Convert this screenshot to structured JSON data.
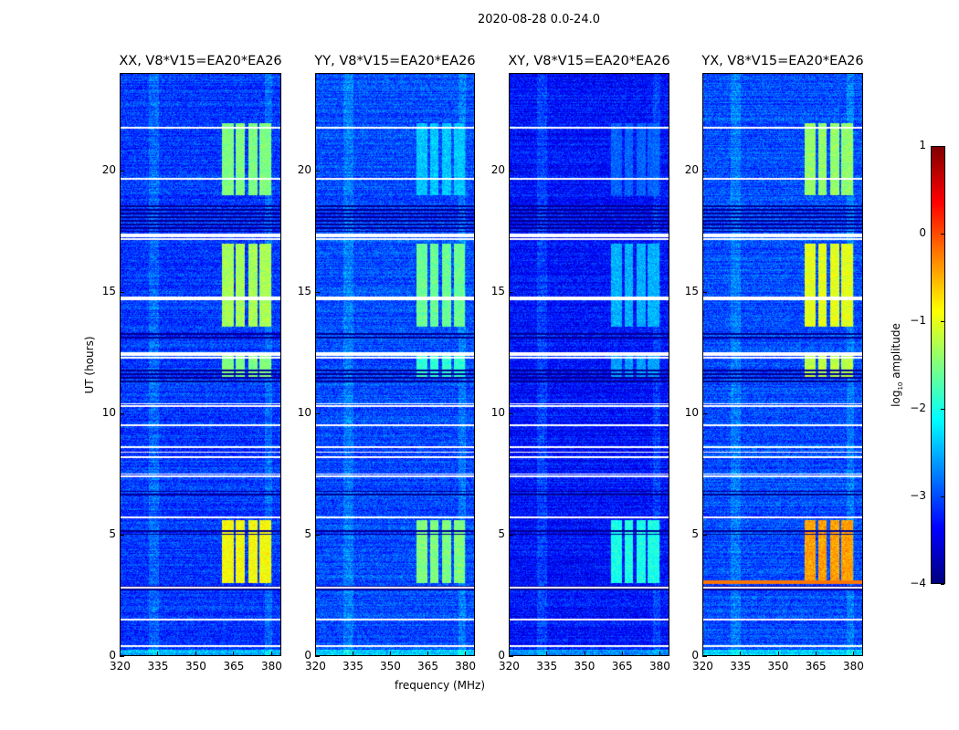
{
  "chart_data": {
    "type": "heatmap",
    "title": "2020-08-28 0.0-24.0",
    "xlabel": "frequency (MHz)",
    "ylabel": "UT (hours)",
    "xlim": [
      320,
      384
    ],
    "ylim": [
      0,
      24
    ],
    "xticks": [
      "320",
      "335",
      "350",
      "365",
      "380"
    ],
    "xtick_values": [
      320,
      335,
      350,
      365,
      380
    ],
    "yticks": [
      "0",
      "5",
      "10",
      "15",
      "20"
    ],
    "ytick_values": [
      0,
      5,
      10,
      15,
      20
    ],
    "colorbar": {
      "label": "log10 amplitude",
      "label_main": "log",
      "label_sub": "10",
      "label_rest": " amplitude",
      "colormap": "jet",
      "range": [
        -4,
        1
      ],
      "ticks": [
        "1",
        "0",
        "−1",
        "−2",
        "−3",
        "−4"
      ],
      "tick_values": [
        1,
        0,
        -1,
        -2,
        -3,
        -4
      ]
    },
    "panels": [
      {
        "title": "XX, V8*V15=EA20*EA26",
        "base": -3.1,
        "rfi": [
          [
            3.0,
            5.6,
            -0.9
          ],
          [
            13.6,
            17.0,
            -1.3
          ],
          [
            19.0,
            22.0,
            -1.5
          ],
          [
            11.5,
            12.5,
            -1.5
          ]
        ]
      },
      {
        "title": "YY, V8*V15=EA20*EA26",
        "base": -3.0,
        "rfi": [
          [
            3.0,
            5.6,
            -1.5
          ],
          [
            13.6,
            17.0,
            -1.6
          ],
          [
            19.0,
            22.0,
            -2.4
          ],
          [
            11.5,
            12.5,
            -1.9
          ]
        ]
      },
      {
        "title": "XY, V8*V15=EA20*EA26",
        "base": -3.3,
        "rfi": [
          [
            3.0,
            5.6,
            -2.0
          ],
          [
            13.6,
            17.0,
            -2.5
          ],
          [
            19.0,
            22.0,
            -2.9
          ],
          [
            11.5,
            12.5,
            -2.6
          ]
        ]
      },
      {
        "title": "YX, V8*V15=EA20*EA26",
        "base": -3.0,
        "rfi": [
          [
            3.0,
            5.6,
            -0.4
          ],
          [
            13.6,
            17.0,
            -1.0
          ],
          [
            19.0,
            22.0,
            -1.4
          ],
          [
            11.5,
            12.5,
            -1.2
          ]
        ]
      }
    ],
    "rfi_channels_mhz": [
      [
        360.5,
        365
      ],
      [
        366,
        369.5
      ],
      [
        371,
        374.5
      ],
      [
        375.5,
        380
      ]
    ],
    "flagged_hours": [
      0.4,
      1.5,
      2.8,
      5.7,
      7.4,
      7.5,
      8.2,
      8.4,
      8.6,
      9.5,
      10.3,
      10.4,
      12.3,
      12.4,
      12.5,
      14.7,
      14.8,
      17.2,
      17.3,
      17.4,
      19.7,
      21.8
    ],
    "low_hours": [
      [
        2.6,
        2.9
      ],
      [
        5.0,
        5.2
      ],
      [
        6.6,
        6.8
      ],
      [
        11.3,
        11.9
      ],
      [
        17.5,
        18.6
      ],
      [
        13.1,
        13.3
      ]
    ]
  }
}
